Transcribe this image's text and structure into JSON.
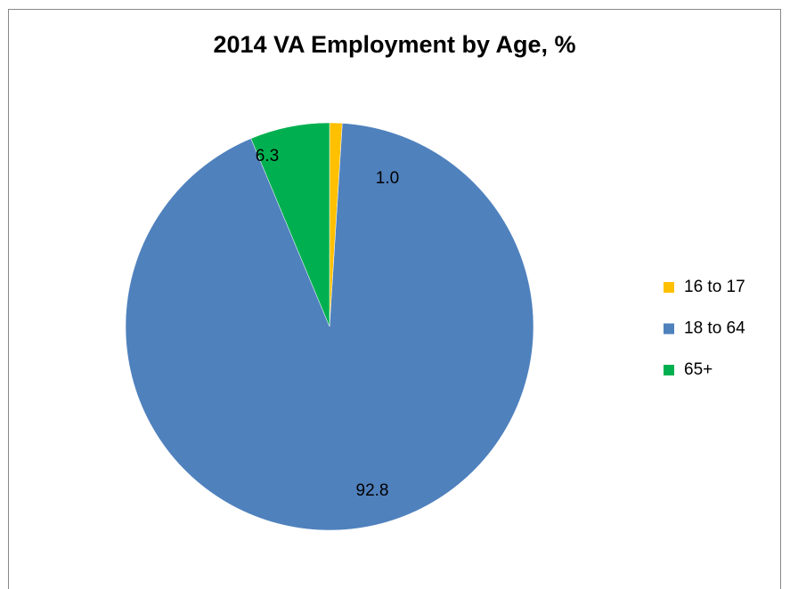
{
  "chart_data": {
    "type": "pie",
    "title": "2014 VA Employment by Age, %",
    "categories": [
      "16 to 17",
      "18 to 64",
      "65+"
    ],
    "values": [
      1.0,
      92.8,
      6.3
    ],
    "value_labels": [
      "1.0",
      "92.8",
      "6.3"
    ],
    "colors": [
      "#ffc000",
      "#4f81bd",
      "#00b050"
    ],
    "legend": "right"
  }
}
